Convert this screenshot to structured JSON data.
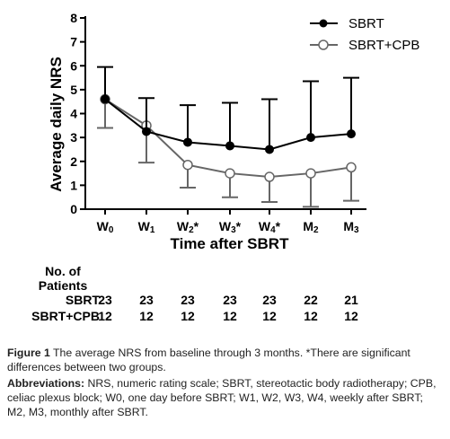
{
  "chart_data": {
    "type": "line",
    "categories": [
      "W0",
      "W1",
      "W2*",
      "W3*",
      "W4*",
      "M2",
      "M3"
    ],
    "tick_labels": [
      {
        "main": "W",
        "sub": "0",
        "suffix": ""
      },
      {
        "main": "W",
        "sub": "1",
        "suffix": ""
      },
      {
        "main": "W",
        "sub": "2",
        "suffix": "*"
      },
      {
        "main": "W",
        "sub": "3",
        "suffix": "*"
      },
      {
        "main": "W",
        "sub": "4",
        "suffix": "*"
      },
      {
        "main": "M",
        "sub": "2",
        "suffix": ""
      },
      {
        "main": "M",
        "sub": "3",
        "suffix": ""
      }
    ],
    "xlabel": "Time after SBRT",
    "ylabel": "Average daily NRS",
    "ylim": [
      0,
      8
    ],
    "yticks": [
      "0",
      "1",
      "2",
      "3",
      "4",
      "5",
      "6",
      "7",
      "8"
    ],
    "legend_position": "top-right",
    "series": [
      {
        "name": "SBRT",
        "marker": "filled-circle",
        "color": "#000000",
        "values": [
          4.6,
          3.25,
          2.8,
          2.65,
          2.5,
          3.0,
          3.15
        ],
        "error_upper": [
          5.95,
          4.65,
          4.35,
          4.45,
          4.6,
          5.35,
          5.5
        ],
        "error_lower": null
      },
      {
        "name": "SBRT+CPB",
        "marker": "open-circle",
        "color": "#666666",
        "values": [
          4.6,
          3.5,
          1.85,
          1.5,
          1.35,
          1.5,
          1.75
        ],
        "error_upper": null,
        "error_lower": [
          3.4,
          1.95,
          0.9,
          0.5,
          0.3,
          0.1,
          0.35
        ]
      }
    ]
  },
  "patients_table": {
    "header_line1": "No. of",
    "header_line2": "Patients",
    "rows": [
      {
        "label": "SBRT",
        "values": [
          "23",
          "23",
          "23",
          "23",
          "23",
          "22",
          "21"
        ]
      },
      {
        "label": "SBRT+CPB",
        "values": [
          "12",
          "12",
          "12",
          "12",
          "12",
          "12",
          "12"
        ]
      }
    ]
  },
  "caption": {
    "figure_label": "Figure 1",
    "figure_text": " The average NRS from baseline through 3 months. *There are significant differences between two groups.",
    "abbr_label": "Abbreviations:",
    "abbr_text": " NRS, numeric rating scale; SBRT, stereotactic body radiotherapy; CPB, celiac plexus block; W0, one day before SBRT; W1, W2, W3, W4, weekly after SBRT; M2, M3, monthly after SBRT."
  }
}
